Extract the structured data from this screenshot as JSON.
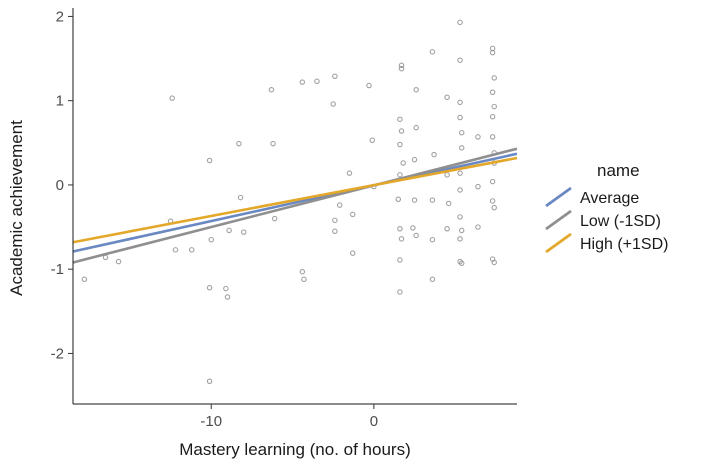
{
  "chart_data": {
    "type": "scatter",
    "title": "",
    "xlabel": "Mastery learning (no. of hours)",
    "ylabel": "Academic achievement",
    "xlim": [
      -18.5,
      8.8
    ],
    "ylim": [
      -2.6,
      2.1
    ],
    "xticks": [
      -10,
      0
    ],
    "yticks": [
      -2,
      -1,
      0,
      1,
      2
    ],
    "grid": false,
    "legend": {
      "title": "name",
      "placement": "right",
      "entries": [
        {
          "label": "Average",
          "color": "#6a88c2"
        },
        {
          "label": "Low (-1SD)",
          "color": "#8f8f8f"
        },
        {
          "label": "High (+1SD)",
          "color": "#e3a82a"
        }
      ]
    },
    "series": [
      {
        "label": "Average",
        "color": "#6a88c2",
        "x": [
          -18.5,
          8.8
        ],
        "y": [
          -0.79,
          0.37
        ]
      },
      {
        "label": "Low (-1SD)",
        "color": "#8f8f8f",
        "x": [
          -18.5,
          8.8
        ],
        "y": [
          -0.92,
          0.43
        ]
      },
      {
        "label": "High (+1SD)",
        "color": "#e3a82a",
        "x": [
          -18.5,
          8.8
        ],
        "y": [
          -0.68,
          0.32
        ]
      }
    ],
    "points": [
      [
        -17.8,
        -1.12
      ],
      [
        -16.5,
        -0.86
      ],
      [
        -15.7,
        -0.91
      ],
      [
        -12.4,
        1.03
      ],
      [
        -12.5,
        -0.43
      ],
      [
        -12.2,
        -0.77
      ],
      [
        -11.2,
        -0.77
      ],
      [
        -10.1,
        0.29
      ],
      [
        -10.0,
        -0.65
      ],
      [
        -10.1,
        -1.22
      ],
      [
        -10.1,
        -2.33
      ],
      [
        -9.1,
        -1.23
      ],
      [
        -9.0,
        -1.33
      ],
      [
        -8.9,
        -0.54
      ],
      [
        -8.3,
        0.49
      ],
      [
        -8.2,
        -0.15
      ],
      [
        -8.0,
        -0.56
      ],
      [
        -6.3,
        1.13
      ],
      [
        -6.2,
        0.49
      ],
      [
        -6.1,
        -0.4
      ],
      [
        -4.4,
        1.22
      ],
      [
        -4.3,
        -1.12
      ],
      [
        -4.4,
        -1.03
      ],
      [
        -3.5,
        1.23
      ],
      [
        -2.4,
        1.29
      ],
      [
        -2.5,
        0.96
      ],
      [
        -2.4,
        -0.42
      ],
      [
        -2.4,
        -0.55
      ],
      [
        -2.1,
        -0.24
      ],
      [
        -1.5,
        0.14
      ],
      [
        -1.3,
        -0.35
      ],
      [
        -1.3,
        -0.81
      ],
      [
        -0.3,
        1.18
      ],
      [
        -0.1,
        0.53
      ],
      [
        0.0,
        -0.02
      ],
      [
        1.7,
        1.42
      ],
      [
        1.7,
        1.38
      ],
      [
        1.6,
        0.78
      ],
      [
        1.7,
        0.64
      ],
      [
        1.6,
        0.48
      ],
      [
        1.8,
        0.26
      ],
      [
        1.6,
        0.12
      ],
      [
        1.5,
        -0.17
      ],
      [
        1.6,
        -0.52
      ],
      [
        1.7,
        -0.64
      ],
      [
        1.6,
        -0.89
      ],
      [
        1.6,
        -1.27
      ],
      [
        2.6,
        1.13
      ],
      [
        2.6,
        0.68
      ],
      [
        2.5,
        0.3
      ],
      [
        2.5,
        -0.18
      ],
      [
        2.4,
        -0.51
      ],
      [
        2.6,
        -0.6
      ],
      [
        3.6,
        1.58
      ],
      [
        3.7,
        0.36
      ],
      [
        3.6,
        -0.18
      ],
      [
        3.6,
        -0.65
      ],
      [
        3.6,
        -1.12
      ],
      [
        4.5,
        1.04
      ],
      [
        4.5,
        0.12
      ],
      [
        4.6,
        -0.22
      ],
      [
        4.5,
        -0.52
      ],
      [
        5.3,
        1.93
      ],
      [
        5.3,
        1.48
      ],
      [
        5.3,
        0.98
      ],
      [
        5.3,
        0.8
      ],
      [
        5.4,
        0.62
      ],
      [
        5.4,
        0.44
      ],
      [
        5.3,
        0.14
      ],
      [
        5.3,
        -0.06
      ],
      [
        5.3,
        -0.38
      ],
      [
        5.4,
        -0.54
      ],
      [
        5.3,
        -0.64
      ],
      [
        5.3,
        -0.91
      ],
      [
        5.4,
        -0.93
      ],
      [
        6.4,
        0.57
      ],
      [
        6.4,
        -0.02
      ],
      [
        6.4,
        -0.5
      ],
      [
        7.3,
        1.62
      ],
      [
        7.3,
        1.57
      ],
      [
        7.4,
        1.27
      ],
      [
        7.3,
        1.1
      ],
      [
        7.4,
        0.93
      ],
      [
        7.3,
        0.81
      ],
      [
        7.3,
        0.57
      ],
      [
        7.4,
        0.38
      ],
      [
        7.4,
        0.26
      ],
      [
        7.3,
        0.04
      ],
      [
        7.3,
        -0.19
      ],
      [
        7.4,
        -0.27
      ],
      [
        7.3,
        -0.88
      ],
      [
        7.4,
        -0.92
      ]
    ]
  }
}
